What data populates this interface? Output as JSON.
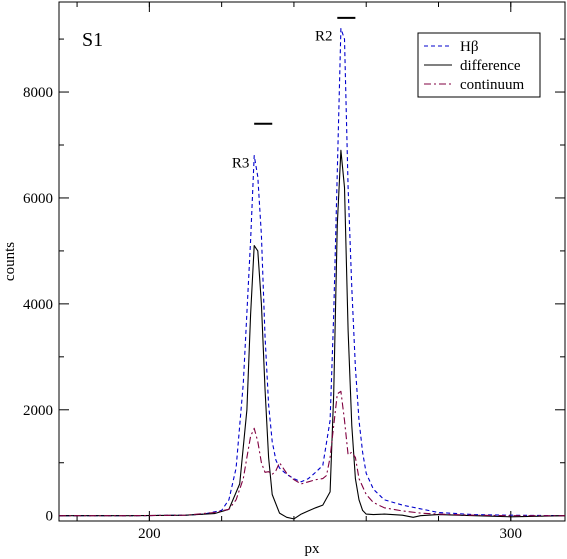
{
  "chart_data": {
    "type": "line",
    "title": "",
    "panel_label": "S1",
    "xlabel": "px",
    "ylabel": "counts",
    "xlim": [
      175,
      315
    ],
    "ylim": [
      -100,
      9700
    ],
    "xticks_major": [
      200,
      300
    ],
    "yticks_major": [
      0,
      2000,
      4000,
      6000,
      8000
    ],
    "grid": false,
    "legend_position": "top-right",
    "colors": {
      "hbeta": "#0000cc",
      "difference": "#000000",
      "continuum": "#800040"
    },
    "series": [
      {
        "name": "Hβ",
        "key": "hbeta",
        "style": "dashed",
        "x": [
          175,
          195,
          210,
          215,
          220,
          222,
          224,
          226,
          228,
          229,
          230,
          231,
          232,
          233,
          234,
          235,
          236,
          238,
          240,
          242,
          244,
          246,
          248,
          250,
          251,
          252,
          253,
          254,
          255,
          256,
          257,
          258,
          259,
          260,
          262,
          265,
          270,
          275,
          280,
          290,
          300,
          315
        ],
        "y": [
          0,
          0,
          10,
          30,
          100,
          300,
          900,
          2500,
          5200,
          6800,
          6400,
          5300,
          3400,
          2100,
          1400,
          1050,
          900,
          780,
          700,
          640,
          700,
          820,
          950,
          1800,
          3800,
          6500,
          9200,
          9000,
          6200,
          4300,
          2800,
          1800,
          1200,
          800,
          500,
          300,
          200,
          130,
          60,
          20,
          10,
          0
        ]
      },
      {
        "name": "difference",
        "key": "difference",
        "style": "solid",
        "x": [
          175,
          195,
          210,
          218,
          222,
          225,
          227,
          228,
          229,
          230,
          231,
          232,
          233,
          234,
          236,
          238,
          240,
          242,
          244,
          246,
          248,
          250,
          251,
          252,
          253,
          254,
          255,
          256,
          257,
          258,
          259,
          260,
          262,
          265,
          270,
          273,
          275,
          280,
          290,
          300,
          315
        ],
        "y": [
          0,
          0,
          10,
          40,
          120,
          600,
          2000,
          3800,
          5100,
          5000,
          4000,
          2400,
          1100,
          400,
          50,
          -30,
          -60,
          30,
          90,
          150,
          200,
          450,
          2300,
          5500,
          6900,
          6200,
          3500,
          1700,
          700,
          300,
          100,
          30,
          20,
          30,
          10,
          -30,
          0,
          20,
          0,
          -20,
          0
        ]
      },
      {
        "name": "continuum",
        "key": "continuum",
        "style": "dashdot",
        "x": [
          175,
          195,
          210,
          218,
          222,
          224,
          226,
          227,
          228,
          229,
          230,
          231,
          232,
          233,
          234,
          235,
          236,
          238,
          240,
          242,
          244,
          246,
          248,
          249,
          250,
          251,
          252,
          253,
          254,
          255,
          256,
          257,
          258,
          260,
          262,
          265,
          270,
          275,
          280,
          290,
          300,
          315
        ],
        "y": [
          0,
          0,
          10,
          60,
          120,
          300,
          700,
          1100,
          1500,
          1650,
          1400,
          1000,
          820,
          830,
          780,
          850,
          1000,
          800,
          680,
          600,
          640,
          680,
          700,
          760,
          1100,
          1700,
          2300,
          2350,
          1800,
          1150,
          1200,
          1100,
          700,
          400,
          250,
          150,
          90,
          50,
          30,
          10,
          0,
          0
        ]
      }
    ],
    "annotations": [
      {
        "text": "R3",
        "x": 231,
        "y": 6800
      },
      {
        "text": "R2",
        "x": 254,
        "y": 9200
      }
    ],
    "markers": [
      {
        "x_start": 229,
        "x_end": 234,
        "y": 7400
      },
      {
        "x_start": 252,
        "x_end": 257,
        "y": 9400
      }
    ]
  }
}
